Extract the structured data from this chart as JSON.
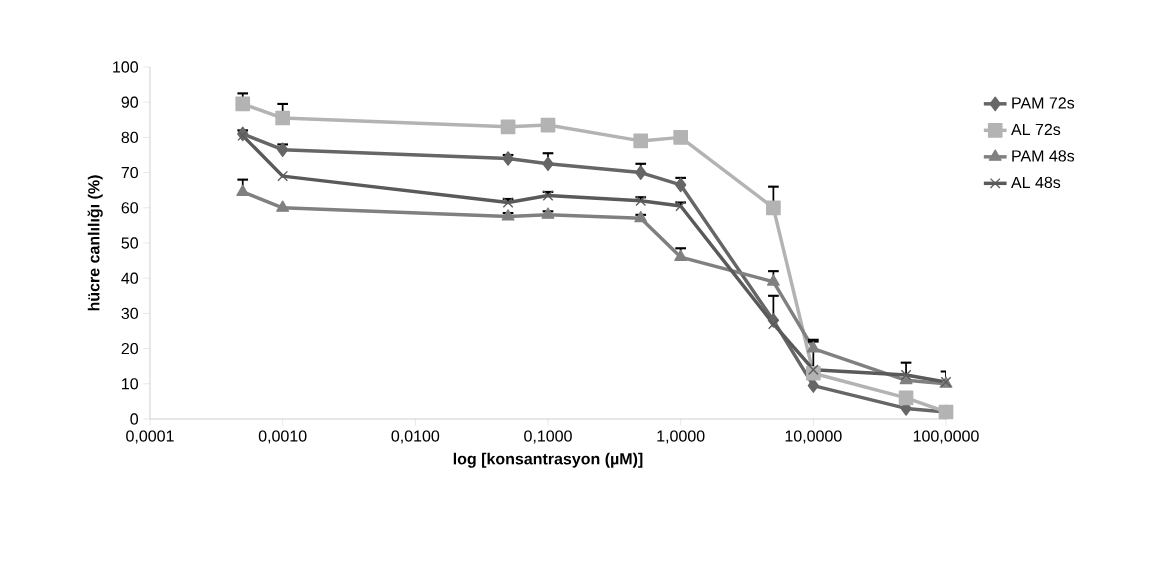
{
  "chart_data": {
    "type": "line",
    "xlabel": "log [konsantrasyon (µM)]",
    "ylabel": "hücre canlılığı (%)",
    "x": [
      0.0005,
      0.001,
      0.05,
      0.1,
      0.5,
      1,
      5,
      10,
      50,
      100
    ],
    "log": "x",
    "xlim": [
      0.0001,
      100
    ],
    "ylim": [
      0,
      100
    ],
    "xticks": [
      {
        "value": 0.0001,
        "label": "0,0001"
      },
      {
        "value": 0.001,
        "label": "0,0010"
      },
      {
        "value": 0.01,
        "label": "0,0100"
      },
      {
        "value": 0.1,
        "label": "0,1000"
      },
      {
        "value": 1,
        "label": "1,0000"
      },
      {
        "value": 10,
        "label": "10,0000"
      },
      {
        "value": 100,
        "label": "100,0000"
      }
    ],
    "yticks": [
      0,
      10,
      20,
      30,
      40,
      50,
      60,
      70,
      80,
      90,
      100
    ],
    "grid": false,
    "legend": "right",
    "series": [
      {
        "name": "PAM 72s",
        "color": "#666666",
        "marker": "diamond",
        "values": [
          81,
          76.5,
          74,
          72.5,
          70,
          66.5,
          28,
          9.5,
          3,
          2
        ],
        "errors": [
          [
            81,
            82
          ],
          [
            76.5,
            78
          ],
          [
            74,
            75
          ],
          [
            72.5,
            75.5
          ],
          [
            70,
            72.5
          ],
          [
            66.5,
            68.5
          ],
          null,
          null,
          null,
          null
        ]
      },
      {
        "name": "AL 72s",
        "color": "#b3b3b3",
        "marker": "square",
        "values": [
          89.5,
          85.5,
          83,
          83.5,
          79,
          80,
          60,
          13,
          6,
          2
        ],
        "errors": [
          [
            89.5,
            92.5
          ],
          [
            85.5,
            89.5
          ],
          null,
          null,
          null,
          null,
          [
            60,
            66
          ],
          null,
          null,
          null
        ]
      },
      {
        "name": "PAM 48s",
        "color": "#808080",
        "marker": "triangle",
        "values": [
          64.5,
          60,
          57.5,
          58,
          57,
          46,
          39,
          20,
          11,
          10
        ],
        "errors": [
          [
            64.5,
            68
          ],
          null,
          [
            57.5,
            58.5
          ],
          [
            58,
            59
          ],
          [
            57,
            58
          ],
          [
            46,
            48.5
          ],
          [
            39,
            42
          ],
          [
            20,
            22.5
          ],
          null,
          null
        ]
      },
      {
        "name": "AL 48s",
        "color": "#5a5a5a",
        "marker": "cross",
        "values": [
          80.5,
          69,
          61.5,
          63.5,
          62,
          60.5,
          27,
          14,
          12.5,
          10.5
        ],
        "errors": [
          null,
          null,
          [
            61.5,
            62.5
          ],
          [
            63.5,
            64.5
          ],
          [
            62,
            63
          ],
          [
            60.5,
            61.5
          ],
          [
            27,
            35
          ],
          [
            14,
            22
          ],
          [
            12.5,
            16
          ],
          [
            10.5,
            13.5
          ]
        ]
      }
    ]
  }
}
